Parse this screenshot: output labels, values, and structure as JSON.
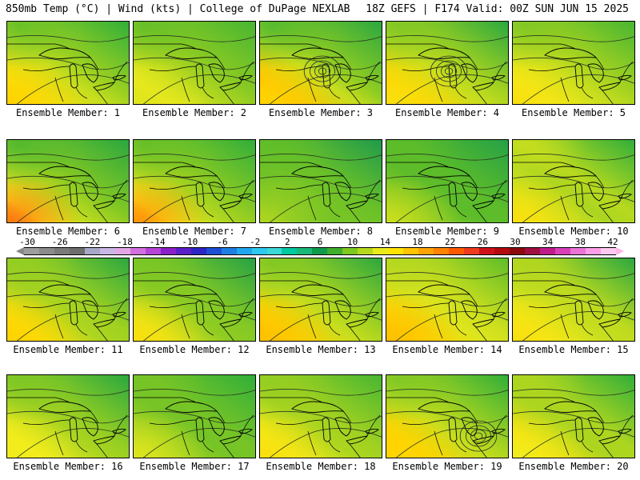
{
  "header": {
    "left": "850mb Temp (°C) | Wind (kts) | College of DuPage NEXLAB",
    "right": "18Z GEFS | F174 Valid: 00Z SUN JUN 15 2025"
  },
  "colorbar": {
    "labels": [
      "-30",
      "-26",
      "-22",
      "-18",
      "-14",
      "-10",
      "-6",
      "-2",
      "2",
      "6",
      "10",
      "14",
      "18",
      "22",
      "26",
      "30",
      "34",
      "38",
      "42"
    ],
    "colors": [
      "#9d9d9d",
      "#8b8b8b",
      "#7a7a7a",
      "#6e6e6e",
      "#a7a7c8",
      "#c9b7e5",
      "#e5a6e6",
      "#d46fe0",
      "#b843d8",
      "#8b1fc9",
      "#5a1fc9",
      "#2e24c6",
      "#1c4fd6",
      "#1c7fe3",
      "#22a7ee",
      "#2cc8ef",
      "#3bd8d8",
      "#00c8a0",
      "#19b87a",
      "#0f9a4c",
      "#3eae2c",
      "#7ec81f",
      "#b6d91b",
      "#eaea1c",
      "#ffe400",
      "#ffc400",
      "#ffa300",
      "#ff8200",
      "#ff5a00",
      "#f03a1e",
      "#d0111a",
      "#b30a10",
      "#8c0a0c",
      "#a01040",
      "#c01a8c",
      "#d93fb8",
      "#ec73d6",
      "#ff9ee8",
      "#ffc8f0"
    ],
    "low_arrow_color": "#888888",
    "high_arrow_color": "#ffb6e8"
  },
  "members": [
    {
      "label": "Ensemble Member: 1",
      "temps": {
        "nw": 8,
        "ne": 6,
        "c": 12,
        "sw": 16,
        "se": 15
      },
      "low": false
    },
    {
      "label": "Ensemble Member: 2",
      "temps": {
        "nw": 8,
        "ne": 7,
        "c": 11,
        "sw": 13,
        "se": 14
      },
      "low": false
    },
    {
      "label": "Ensemble Member: 3",
      "temps": {
        "nw": 7,
        "ne": 5,
        "c": 12,
        "sw": 16,
        "se": 17
      },
      "low": true
    },
    {
      "label": "Ensemble Member: 4",
      "temps": {
        "nw": 9,
        "ne": 5,
        "c": 12,
        "sw": 15,
        "se": 16
      },
      "low": true
    },
    {
      "label": "Ensemble Member: 5",
      "temps": {
        "nw": 9,
        "ne": 7,
        "c": 12,
        "sw": 15,
        "se": 14
      },
      "low": false
    },
    {
      "label": "Ensemble Member: 6",
      "temps": {
        "nw": 7,
        "ne": 5,
        "c": 11,
        "sw": 20,
        "se": 14
      },
      "low": false
    },
    {
      "label": "Ensemble Member: 7",
      "temps": {
        "nw": 8,
        "ne": 6,
        "c": 11,
        "sw": 19,
        "se": 14
      },
      "low": false
    },
    {
      "label": "Ensemble Member: 8",
      "temps": {
        "nw": 8,
        "ne": 3,
        "c": 9,
        "sw": 11,
        "se": 9
      },
      "low": false
    },
    {
      "label": "Ensemble Member: 9",
      "temps": {
        "nw": 8,
        "ne": 4,
        "c": 8,
        "sw": 12,
        "se": 10
      },
      "low": false
    },
    {
      "label": "Ensemble Member: 10",
      "temps": {
        "nw": 12,
        "ne": 6,
        "c": 11,
        "sw": 15,
        "se": 13
      },
      "low": false
    },
    {
      "label": "Ensemble Member: 11",
      "temps": {
        "nw": 10,
        "ne": 5,
        "c": 11,
        "sw": 16,
        "se": 15
      },
      "low": false
    },
    {
      "label": "Ensemble Member: 12",
      "temps": {
        "nw": 9,
        "ne": 4,
        "c": 10,
        "sw": 15,
        "se": 13
      },
      "low": false
    },
    {
      "label": "Ensemble Member: 13",
      "temps": {
        "nw": 9,
        "ne": 5,
        "c": 12,
        "sw": 17,
        "se": 16
      },
      "low": false
    },
    {
      "label": "Ensemble Member: 14",
      "temps": {
        "nw": 11,
        "ne": 8,
        "c": 13,
        "sw": 17,
        "se": 16
      },
      "low": false
    },
    {
      "label": "Ensemble Member: 15",
      "temps": {
        "nw": 11,
        "ne": 5,
        "c": 12,
        "sw": 15,
        "se": 14
      },
      "low": false
    },
    {
      "label": "Ensemble Member: 16",
      "temps": {
        "nw": 9,
        "ne": 5,
        "c": 11,
        "sw": 14,
        "se": 14
      },
      "low": false
    },
    {
      "label": "Ensemble Member: 17",
      "temps": {
        "nw": 9,
        "ne": 6,
        "c": 9,
        "sw": 13,
        "se": 11
      },
      "low": false
    },
    {
      "label": "Ensemble Member: 18",
      "temps": {
        "nw": 10,
        "ne": 7,
        "c": 11,
        "sw": 15,
        "se": 14
      },
      "low": false
    },
    {
      "label": "Ensemble Member: 19",
      "temps": {
        "nw": 9,
        "ne": 6,
        "c": 12,
        "sw": 16,
        "se": 16
      },
      "low": true
    },
    {
      "label": "Ensemble Member: 20",
      "temps": {
        "nw": 11,
        "ne": 6,
        "c": 11,
        "sw": 14,
        "se": 15
      },
      "low": false
    }
  ]
}
